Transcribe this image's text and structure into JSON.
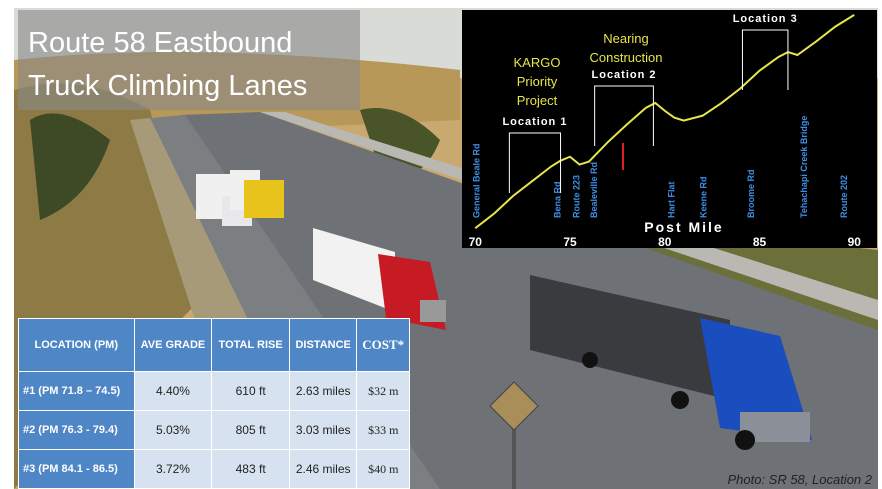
{
  "slide": {
    "title": [
      "Route 58 Eastbound",
      "Truck Climbing Lanes"
    ],
    "photo_credit": "Photo: SR 58, Location 2"
  },
  "table": {
    "header": [
      "LOCATION (PM)",
      "AVE GRADE",
      "TOTAL RISE",
      "DISTANCE",
      "COST*"
    ],
    "rows": [
      [
        "#1  (PM 71.8 – 74.5)",
        "4.40%",
        "610 ft",
        "2.63 miles",
        "$32 m"
      ],
      [
        "#2  (PM 76.3 - 79.4)",
        "5.03%",
        "805 ft",
        "3.03 miles",
        "$33 m"
      ],
      [
        "#3  (PM 84.1 - 86.5)",
        "3.72%",
        "483 ft",
        "2.46 miles",
        "$40 m"
      ]
    ]
  },
  "chart_data": {
    "type": "line",
    "x_label": "Post Mile",
    "color": "#e6e64a",
    "x": [
      70,
      71,
      72,
      73,
      74,
      74.5,
      75,
      75.5,
      76,
      76.5,
      77,
      78,
      79,
      79.5,
      80,
      80.5,
      81,
      82,
      83,
      84,
      85,
      86,
      86.5,
      87,
      88,
      89,
      90
    ],
    "values": [
      7,
      22,
      40,
      55,
      70,
      76,
      80,
      72,
      75,
      85,
      95,
      113,
      130,
      135,
      127,
      120,
      117,
      122,
      135,
      150,
      168,
      182,
      187,
      184,
      198,
      213,
      225
    ],
    "xlim": [
      69.3,
      91.2
    ],
    "xticks": [
      70,
      75,
      80,
      85,
      90
    ],
    "ylim": [
      0,
      230
    ],
    "landmarks": [
      {
        "name": "General Beale Rd",
        "x": 70
      },
      {
        "name": "Bena Rd",
        "x": 74.3
      },
      {
        "name": "Route 223",
        "x": 75.3
      },
      {
        "name": "Bealeville Rd",
        "x": 76.2
      },
      {
        "name": "Hart Flat",
        "x": 80.3
      },
      {
        "name": "Keene Rd",
        "x": 82
      },
      {
        "name": "Broome Rd",
        "x": 84.5
      },
      {
        "name": "Tehachapi Creek Bridge",
        "x": 87.3
      },
      {
        "name": "Route 202",
        "x": 89.4
      }
    ],
    "locations": [
      {
        "label": "Location 1",
        "start": 71.8,
        "end": 74.5
      },
      {
        "label": "Location 2",
        "start": 76.3,
        "end": 79.4
      },
      {
        "label": "Location 3",
        "start": 84.1,
        "end": 86.5
      }
    ],
    "notes": [
      [
        "KARGO",
        "Priority",
        "Project"
      ],
      [
        "Nearing",
        "Construction"
      ]
    ]
  }
}
